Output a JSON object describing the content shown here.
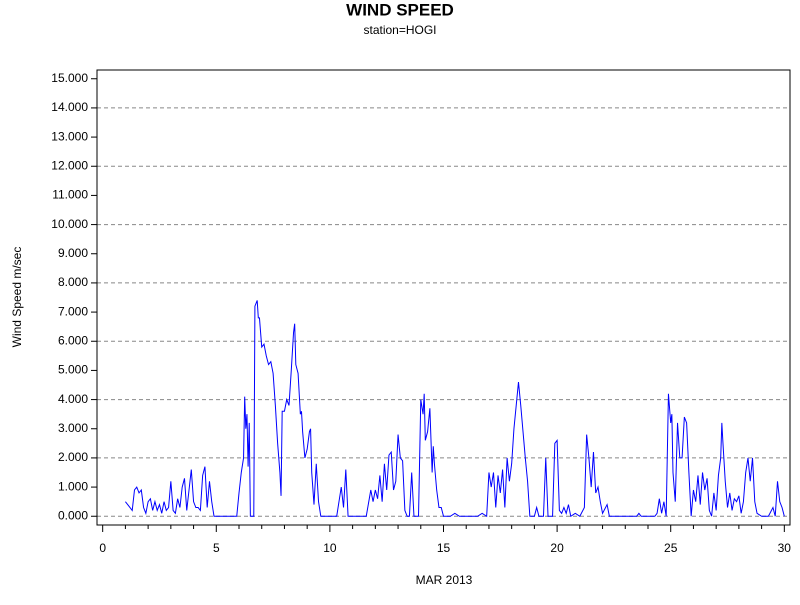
{
  "chart_data": {
    "type": "line",
    "title": "WIND SPEED",
    "subtitle": "station=HOGI",
    "x_label": "MAR 2013",
    "y_label": "Wind Speed m/sec",
    "xlim": [
      -0.25,
      30.25
    ],
    "ylim": [
      -0.3,
      15.3
    ],
    "xticks": [
      0,
      5,
      10,
      15,
      20,
      25,
      30
    ],
    "xminorticks": [
      1,
      2,
      3,
      4,
      6,
      7,
      8,
      9,
      11,
      12,
      13,
      14,
      16,
      17,
      18,
      19,
      21,
      22,
      23,
      24,
      26,
      27,
      28,
      29
    ],
    "yticks": [
      {
        "value": 0,
        "label": "0.000"
      },
      {
        "value": 1,
        "label": "1.000"
      },
      {
        "value": 2,
        "label": "2.000"
      },
      {
        "value": 3,
        "label": "3.000"
      },
      {
        "value": 4,
        "label": "4.000"
      },
      {
        "value": 5,
        "label": "5.000"
      },
      {
        "value": 6,
        "label": "6.000"
      },
      {
        "value": 7,
        "label": "7.000"
      },
      {
        "value": 8,
        "label": "8.000"
      },
      {
        "value": 9,
        "label": "9.000"
      },
      {
        "value": 10,
        "label": "10.000"
      },
      {
        "value": 11,
        "label": "11.000"
      },
      {
        "value": 12,
        "label": "12.000"
      },
      {
        "value": 13,
        "label": "13.000"
      },
      {
        "value": 14,
        "label": "14.000"
      },
      {
        "value": 15,
        "label": "15.000"
      }
    ],
    "ygrid": [
      0,
      2,
      4,
      6,
      8,
      10,
      12,
      14
    ],
    "series": [
      {
        "color": "#0000ff",
        "x": [
          1.0,
          1.1,
          1.3,
          1.4,
          1.5,
          1.6,
          1.7,
          1.8,
          1.9,
          2.0,
          2.1,
          2.2,
          2.3,
          2.4,
          2.5,
          2.6,
          2.7,
          2.8,
          2.9,
          3.0,
          3.1,
          3.2,
          3.3,
          3.4,
          3.5,
          3.6,
          3.7,
          3.8,
          3.9,
          4.0,
          4.1,
          4.2,
          4.3,
          4.4,
          4.5,
          4.6,
          4.7,
          4.8,
          4.9,
          5.2,
          5.6,
          5.9,
          6.0,
          6.1,
          6.2,
          6.25,
          6.3,
          6.35,
          6.4,
          6.45,
          6.5,
          6.65,
          6.7,
          6.8,
          6.85,
          6.9,
          7.0,
          7.1,
          7.2,
          7.3,
          7.4,
          7.5,
          7.6,
          7.7,
          7.8,
          7.85,
          7.9,
          8.0,
          8.1,
          8.2,
          8.3,
          8.4,
          8.45,
          8.5,
          8.6,
          8.7,
          8.75,
          8.8,
          8.9,
          9.0,
          9.1,
          9.15,
          9.2,
          9.3,
          9.4,
          9.5,
          9.6,
          10.0,
          10.3,
          10.5,
          10.6,
          10.7,
          10.8,
          11.6,
          11.8,
          11.9,
          12.0,
          12.1,
          12.2,
          12.3,
          12.4,
          12.5,
          12.6,
          12.7,
          12.8,
          12.9,
          13.0,
          13.1,
          13.2,
          13.3,
          13.4,
          13.5,
          13.6,
          13.7,
          13.9,
          14.0,
          14.1,
          14.15,
          14.2,
          14.3,
          14.4,
          14.5,
          14.55,
          14.6,
          14.7,
          14.8,
          14.9,
          15.0,
          15.3,
          15.5,
          15.7,
          16.5,
          16.7,
          16.9,
          17.0,
          17.1,
          17.2,
          17.3,
          17.4,
          17.5,
          17.6,
          17.7,
          17.8,
          17.9,
          18.0,
          18.1,
          18.2,
          18.3,
          18.4,
          18.5,
          18.6,
          18.7,
          18.8,
          19.0,
          19.1,
          19.2,
          19.4,
          19.5,
          19.6,
          19.8,
          19.9,
          20.0,
          20.1,
          20.2,
          20.3,
          20.4,
          20.5,
          20.6,
          20.8,
          21.0,
          21.2,
          21.3,
          21.4,
          21.5,
          21.6,
          21.7,
          21.8,
          21.9,
          22.0,
          22.2,
          22.3,
          23.5,
          23.6,
          23.7,
          24.3,
          24.4,
          24.5,
          24.6,
          24.7,
          24.8,
          24.9,
          25.0,
          25.05,
          25.1,
          25.2,
          25.3,
          25.4,
          25.5,
          25.6,
          25.7,
          25.8,
          25.9,
          26.0,
          26.1,
          26.2,
          26.3,
          26.4,
          26.5,
          26.6,
          26.7,
          26.8,
          26.9,
          27.0,
          27.1,
          27.2,
          27.25,
          27.3,
          27.4,
          27.5,
          27.6,
          27.7,
          27.8,
          27.9,
          28.0,
          28.1,
          28.2,
          28.3,
          28.4,
          28.5,
          28.6,
          28.7,
          28.8,
          29.0,
          29.3,
          29.5,
          29.6,
          29.7,
          29.8,
          29.9,
          30.0
        ],
        "values": [
          0.5,
          0.4,
          0.2,
          0.9,
          1.0,
          0.8,
          0.9,
          0.3,
          0.1,
          0.5,
          0.6,
          0.2,
          0.5,
          0.2,
          0.4,
          0.1,
          0.5,
          0.2,
          0.3,
          1.2,
          0.2,
          0.1,
          0.6,
          0.3,
          1.0,
          1.3,
          0.2,
          0.9,
          1.6,
          0.5,
          0.3,
          0.3,
          0.2,
          1.4,
          1.7,
          0.3,
          1.2,
          0.5,
          0.0,
          0.0,
          0.0,
          0.0,
          0.8,
          1.5,
          2.0,
          4.1,
          3.0,
          3.5,
          1.7,
          3.2,
          0.0,
          0.0,
          7.2,
          7.4,
          6.8,
          6.8,
          5.8,
          5.9,
          5.5,
          5.2,
          5.3,
          4.9,
          3.8,
          2.5,
          1.5,
          0.7,
          3.6,
          3.6,
          4.0,
          3.8,
          5.0,
          6.3,
          6.6,
          5.2,
          4.9,
          3.5,
          3.6,
          2.9,
          2.0,
          2.3,
          2.9,
          3.0,
          1.5,
          0.4,
          1.8,
          0.5,
          0.0,
          0.0,
          0.0,
          1.0,
          0.3,
          1.6,
          0.0,
          0.0,
          0.9,
          0.5,
          0.9,
          0.6,
          1.4,
          0.5,
          1.8,
          0.9,
          2.1,
          2.2,
          0.9,
          1.2,
          2.8,
          2.0,
          1.9,
          0.2,
          0.0,
          0.0,
          1.5,
          0.0,
          0.0,
          4.0,
          3.5,
          4.2,
          2.6,
          2.9,
          3.7,
          1.5,
          2.4,
          1.8,
          0.9,
          0.3,
          0.3,
          0.0,
          0.0,
          0.1,
          0.0,
          0.0,
          0.1,
          0.0,
          1.5,
          1.0,
          1.5,
          0.3,
          1.4,
          0.8,
          1.6,
          0.3,
          2.0,
          1.2,
          1.8,
          3.0,
          3.8,
          4.6,
          3.8,
          2.9,
          2.0,
          1.2,
          0.0,
          0.0,
          0.3,
          0.0,
          0.0,
          2.0,
          0.0,
          0.0,
          2.5,
          2.6,
          0.2,
          0.1,
          0.3,
          0.1,
          0.4,
          0.0,
          0.1,
          0.0,
          0.3,
          2.8,
          2.0,
          1.0,
          2.2,
          0.8,
          1.0,
          0.5,
          0.1,
          0.4,
          0.0,
          0.0,
          0.1,
          0.0,
          0.0,
          0.1,
          0.6,
          0.1,
          0.5,
          0.0,
          4.2,
          3.2,
          3.5,
          1.5,
          0.5,
          3.2,
          2.0,
          2.0,
          3.4,
          3.2,
          1.5,
          0.0,
          0.9,
          0.5,
          1.4,
          0.4,
          1.5,
          0.9,
          1.3,
          0.2,
          0.0,
          0.8,
          0.2,
          1.4,
          2.0,
          3.2,
          2.5,
          1.2,
          0.3,
          0.8,
          0.2,
          0.6,
          0.5,
          0.7,
          0.1,
          0.5,
          1.5,
          2.0,
          1.2,
          2.0,
          0.5,
          0.1,
          0.0,
          0.0,
          0.3,
          0.0,
          1.2,
          0.5,
          0.3,
          0.0
        ]
      }
    ]
  }
}
